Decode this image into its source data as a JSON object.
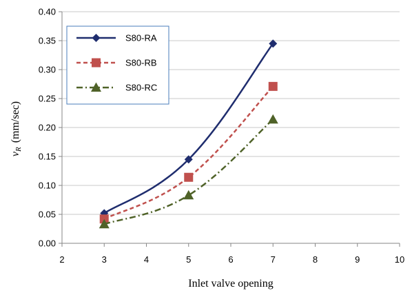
{
  "chart_data": {
    "type": "line",
    "title": "",
    "xlabel": "Inlet valve opening",
    "ylabel_var": "v",
    "ylabel_sub": "R",
    "ylabel_unit": "(mm/sec)",
    "xlim": [
      2,
      10
    ],
    "ylim": [
      0,
      0.4
    ],
    "x_ticks": [
      "2",
      "3",
      "4",
      "5",
      "6",
      "7",
      "8",
      "9",
      "10"
    ],
    "y_ticks": [
      "0.00",
      "0.05",
      "0.10",
      "0.15",
      "0.20",
      "0.25",
      "0.30",
      "0.35",
      "0.40"
    ],
    "grid": "horizontal",
    "legend_position": "top-left",
    "series": [
      {
        "name": "S80-RA",
        "x": [
          3,
          5,
          7
        ],
        "values": [
          0.052,
          0.145,
          0.345
        ],
        "color": "#1f2d6e",
        "marker": "diamond",
        "dash": "solid"
      },
      {
        "name": "S80-RB",
        "x": [
          3,
          5,
          7
        ],
        "values": [
          0.042,
          0.114,
          0.271
        ],
        "color": "#c0504d",
        "marker": "square",
        "dash": "dashed"
      },
      {
        "name": "S80-RC",
        "x": [
          3,
          5,
          7
        ],
        "values": [
          0.033,
          0.083,
          0.214
        ],
        "color": "#4f6228",
        "marker": "triangle",
        "dash": "dash-dot"
      }
    ]
  }
}
